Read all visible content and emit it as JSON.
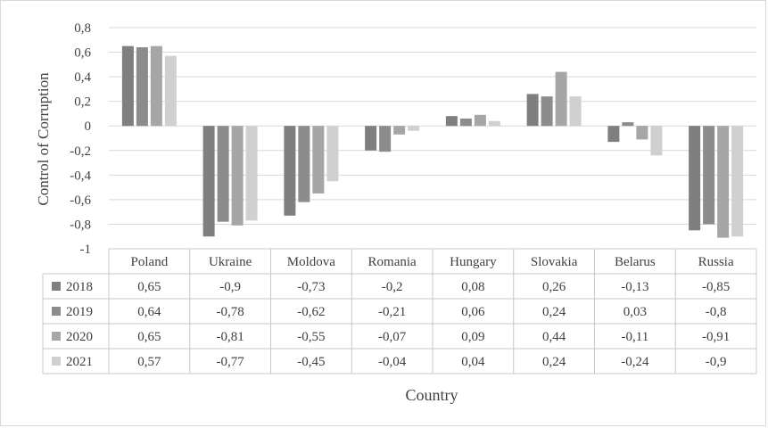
{
  "chart_data": {
    "type": "bar",
    "xlabel": "Country",
    "ylabel": "Control of Corruption",
    "ylim": [
      -1,
      0.8
    ],
    "yticks": [
      "0,8",
      "0,6",
      "0,4",
      "0,2",
      "0",
      "-0,2",
      "-0,4",
      "-0,6",
      "-0,8",
      "-1"
    ],
    "categories": [
      "Poland",
      "Ukraine",
      "Moldova",
      "Romania",
      "Hungary",
      "Slovakia",
      "Belarus",
      "Russia"
    ],
    "series": [
      {
        "name": "2018",
        "color": "#7f7f7f",
        "values": [
          0.65,
          -0.9,
          -0.73,
          -0.2,
          0.08,
          0.26,
          -0.13,
          -0.85
        ],
        "labels": [
          "0,65",
          "-0,9",
          "-0,73",
          "-0,2",
          "0,08",
          "0,26",
          "-0,13",
          "-0,85"
        ]
      },
      {
        "name": "2019",
        "color": "#8c8c8c",
        "values": [
          0.64,
          -0.78,
          -0.62,
          -0.21,
          0.06,
          0.24,
          0.03,
          -0.8
        ],
        "labels": [
          "0,64",
          "-0,78",
          "-0,62",
          "-0,21",
          "0,06",
          "0,24",
          "0,03",
          "-0,8"
        ]
      },
      {
        "name": "2020",
        "color": "#a6a6a6",
        "values": [
          0.65,
          -0.81,
          -0.55,
          -0.07,
          0.09,
          0.44,
          -0.11,
          -0.91
        ],
        "labels": [
          "0,65",
          "-0,81",
          "-0,55",
          "-0,07",
          "0,09",
          "0,44",
          "-0,11",
          "-0,91"
        ]
      },
      {
        "name": "2021",
        "color": "#d0d0d0",
        "values": [
          0.57,
          -0.77,
          -0.45,
          -0.04,
          0.04,
          0.24,
          -0.24,
          -0.9
        ],
        "labels": [
          "0,57",
          "-0,77",
          "-0,45",
          "-0,04",
          "0,04",
          "0,24",
          "-0,24",
          "-0,9"
        ]
      }
    ],
    "gridlines": true,
    "legend": "data-table"
  }
}
